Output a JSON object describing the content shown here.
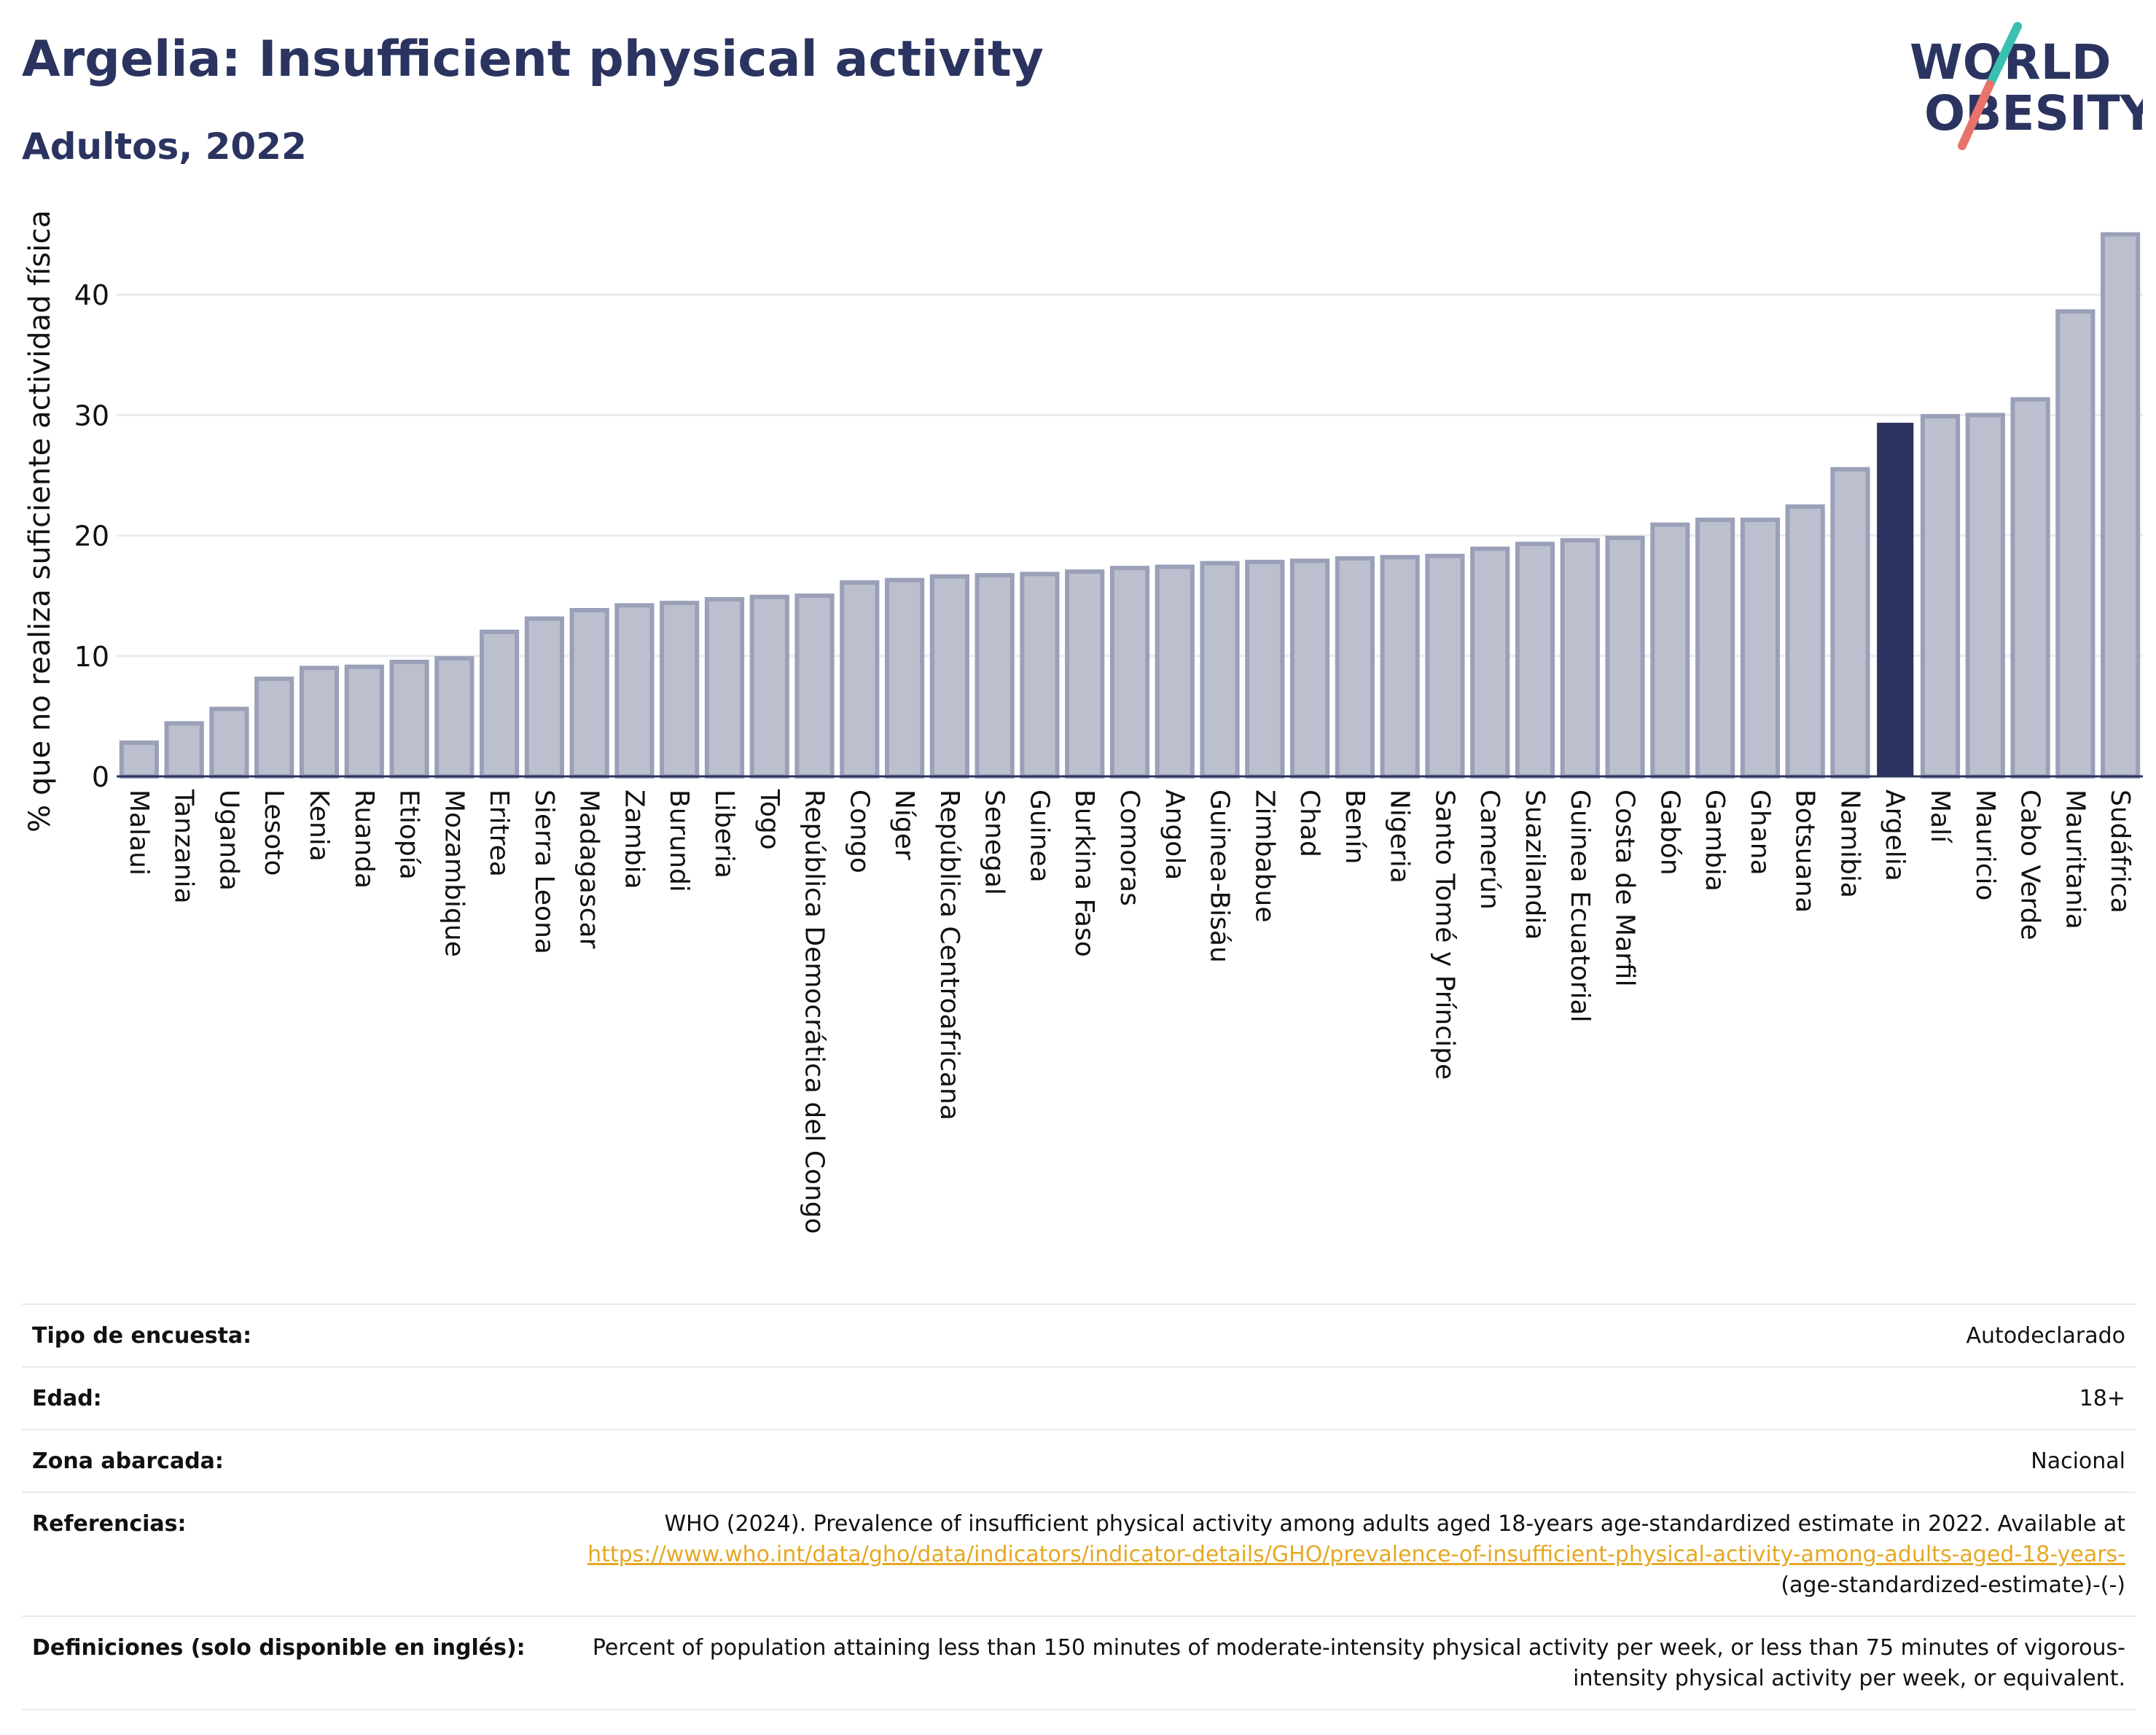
{
  "title": "Argelia: Insufficient physical activity",
  "subtitle": "Adultos, 2022",
  "logo": {
    "line1": "WORLD",
    "line2": "OBESITY"
  },
  "colors": {
    "title": "#2b3460",
    "bar": "#bcc0ce",
    "bar_edge": "#9aa0b8",
    "highlight": "#2b3460",
    "link": "#e5a823",
    "grid": "#e9ebef"
  },
  "chart_data": {
    "type": "bar",
    "ylabel": "% que no realiza suficiente actividad física",
    "ylim": [
      0,
      46
    ],
    "yticks": [
      0,
      10,
      20,
      30,
      40
    ],
    "highlight": "Argelia",
    "grid": true,
    "categories": [
      "Malaui",
      "Tanzania",
      "Uganda",
      "Lesoto",
      "Kenia",
      "Ruanda",
      "Etiopía",
      "Mozambique",
      "Eritrea",
      "Sierra Leona",
      "Madagascar",
      "Zambia",
      "Burundi",
      "Liberia",
      "Togo",
      "República Democrática del Congo",
      "Congo",
      "Níger",
      "República Centroafricana",
      "Senegal",
      "Guinea",
      "Burkina Faso",
      "Comoras",
      "Angola",
      "Guinea-Bisáu",
      "Zimbabue",
      "Chad",
      "Benín",
      "Nigeria",
      "Santo Tomé y Príncipe",
      "Camerún",
      "Suazilandia",
      "Guinea Ecuatorial",
      "Costa de Marfil",
      "Gabón",
      "Gambia",
      "Ghana",
      "Botsuana",
      "Namibia",
      "Argelia",
      "Malí",
      "Mauricio",
      "Cabo Verde",
      "Mauritania",
      "Sudáfrica"
    ],
    "values": [
      2.8,
      4.4,
      5.6,
      8.1,
      9.0,
      9.1,
      9.5,
      9.8,
      12.0,
      13.1,
      13.8,
      14.2,
      14.4,
      14.7,
      14.9,
      15.0,
      16.1,
      16.3,
      16.6,
      16.7,
      16.8,
      17.0,
      17.3,
      17.4,
      17.7,
      17.8,
      17.9,
      18.1,
      18.2,
      18.3,
      18.9,
      19.3,
      19.6,
      19.8,
      20.9,
      21.3,
      21.3,
      22.4,
      25.5,
      29.3,
      29.9,
      30.0,
      31.3,
      38.6,
      45.0
    ]
  },
  "info": {
    "rows": [
      {
        "label": "Tipo de encuesta:",
        "value": "Autodeclarado"
      },
      {
        "label": "Edad:",
        "value": "18+"
      },
      {
        "label": "Zona abarcada:",
        "value": "Nacional"
      }
    ],
    "references": {
      "label": "Referencias:",
      "text": "WHO (2024). Prevalence of insufficient physical activity among adults aged 18-years age-standardized estimate in 2022. Available at",
      "link": "https://www.who.int/data/gho/data/indicators/indicator-details/GHO/prevalence-of-insufficient-physical-activity-among-adults-aged-18-years-",
      "suffix": "(age-standardized-estimate)-(-)"
    },
    "definitions": {
      "label": "Definiciones (solo disponible en inglés):",
      "value": "Percent of population attaining less than 150 minutes of moderate-intensity physical activity per week, or less than 75 minutes of vigorous-intensity physical activity per week, or equivalent."
    }
  }
}
